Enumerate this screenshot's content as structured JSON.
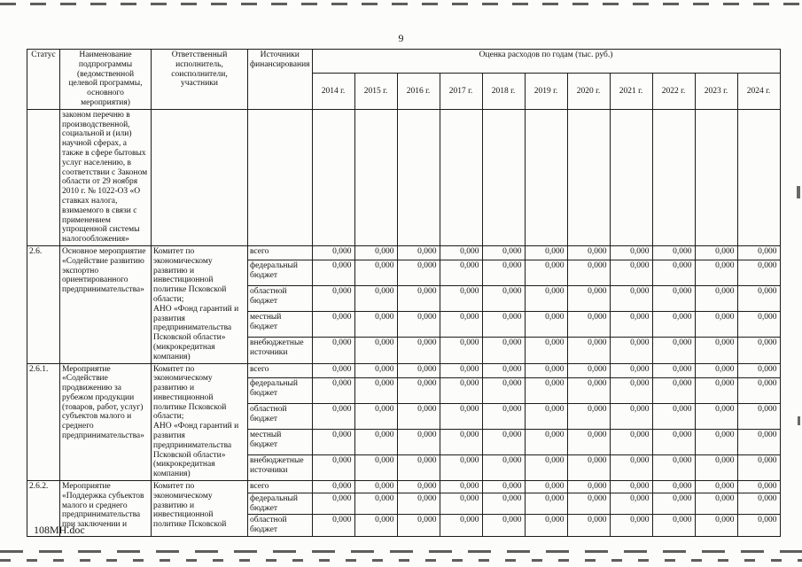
{
  "page": {
    "number": "9",
    "footer": "108МН.doc"
  },
  "table": {
    "headers": {
      "status": "Статус",
      "name": "Наименование подпрограммы (ведомственной целевой программы, основного мероприятия)",
      "executor": "Ответственный исполнитель, соисполнители, участники",
      "sources": "Источники финансирования",
      "cost_estimate": "Оценка расходов по годам (тыс. руб.)",
      "years": [
        "2014 г.",
        "2015 г.",
        "2016 г.",
        "2017 г.",
        "2018 г.",
        "2019 г.",
        "2020 г.",
        "2021 г.",
        "2022 г.",
        "2023 г.",
        "2024 г."
      ]
    },
    "groups": [
      {
        "status": "",
        "name": "законом перечню в производственной, социальной и (или) научной сферах, а также в сфере бытовых услуг населению, в соответствии с Законом области от 29 ноября 2010 г. № 1022-ОЗ «О ставках налога, взимаемого в связи с применением упрощенной системы налогообложения»",
        "executor": "",
        "sources": []
      },
      {
        "status": "2.6.",
        "name": "Основное мероприятие «Содействие развитию экспортно ориентированного предпринимательства»",
        "executor": "Комитет по экономическому развитию и инвестиционной политике Псковской области;\nАНО «Фонд гарантий и развития предпринимательства Псковской области» (микрокредитная компания)",
        "sources": [
          {
            "label": "всего",
            "values": [
              "0,000",
              "0,000",
              "0,000",
              "0,000",
              "0,000",
              "0,000",
              "0,000",
              "0,000",
              "0,000",
              "0,000",
              "0,000"
            ]
          },
          {
            "label": "федеральный бюджет",
            "values": [
              "0,000",
              "0,000",
              "0,000",
              "0,000",
              "0,000",
              "0,000",
              "0,000",
              "0,000",
              "0,000",
              "0,000",
              "0,000"
            ]
          },
          {
            "label": "областной бюджет",
            "values": [
              "0,000",
              "0,000",
              "0,000",
              "0,000",
              "0,000",
              "0,000",
              "0,000",
              "0,000",
              "0,000",
              "0,000",
              "0,000"
            ]
          },
          {
            "label": "местный бюджет",
            "values": [
              "0,000",
              "0,000",
              "0,000",
              "0,000",
              "0,000",
              "0,000",
              "0,000",
              "0,000",
              "0,000",
              "0,000",
              "0,000"
            ]
          },
          {
            "label": "внебюджетные источники",
            "values": [
              "0,000",
              "0,000",
              "0,000",
              "0,000",
              "0,000",
              "0,000",
              "0,000",
              "0,000",
              "0,000",
              "0,000",
              "0,000"
            ]
          }
        ]
      },
      {
        "status": "2.6.1.",
        "name": "Мероприятие «Содействие продвижению за рубежом продукции (товаров, работ, услуг) субъектов малого и среднего предпринимательства»",
        "executor": "Комитет по экономическому развитию и инвестиционной политике Псковской области;\nАНО «Фонд гарантий и развития предпринимательства Псковской области» (микрокредитная компания)",
        "sources": [
          {
            "label": "всего",
            "values": [
              "0,000",
              "0,000",
              "0,000",
              "0,000",
              "0,000",
              "0,000",
              "0,000",
              "0,000",
              "0,000",
              "0,000",
              "0,000"
            ]
          },
          {
            "label": "федеральный бюджет",
            "values": [
              "0,000",
              "0,000",
              "0,000",
              "0,000",
              "0,000",
              "0,000",
              "0,000",
              "0,000",
              "0,000",
              "0,000",
              "0,000"
            ]
          },
          {
            "label": "областной бюджет",
            "values": [
              "0,000",
              "0,000",
              "0,000",
              "0,000",
              "0,000",
              "0,000",
              "0,000",
              "0,000",
              "0,000",
              "0,000",
              "0,000"
            ]
          },
          {
            "label": "местный бюджет",
            "values": [
              "0,000",
              "0,000",
              "0,000",
              "0,000",
              "0,000",
              "0,000",
              "0,000",
              "0,000",
              "0,000",
              "0,000",
              "0,000"
            ]
          },
          {
            "label": "внебюджетные источники",
            "values": [
              "0,000",
              "0,000",
              "0,000",
              "0,000",
              "0,000",
              "0,000",
              "0,000",
              "0,000",
              "0,000",
              "0,000",
              "0,000"
            ]
          }
        ]
      },
      {
        "status": "2.6.2.",
        "name": "Мероприятие «Поддержка субъектов малого и среднего предпринимательства при заключении и",
        "executor": "Комитет по экономическому развитию и инвестиционной политике Псковской",
        "sources": [
          {
            "label": "всего",
            "values": [
              "0,000",
              "0,000",
              "0,000",
              "0,000",
              "0,000",
              "0,000",
              "0,000",
              "0,000",
              "0,000",
              "0,000",
              "0,000"
            ]
          },
          {
            "label": "федеральный бюджет",
            "values": [
              "0,000",
              "0,000",
              "0,000",
              "0,000",
              "0,000",
              "0,000",
              "0,000",
              "0,000",
              "0,000",
              "0,000",
              "0,000"
            ]
          },
          {
            "label": "областной бюджет",
            "values": [
              "0,000",
              "0,000",
              "0,000",
              "0,000",
              "0,000",
              "0,000",
              "0,000",
              "0,000",
              "0,000",
              "0,000",
              "0,000"
            ]
          }
        ]
      }
    ]
  }
}
